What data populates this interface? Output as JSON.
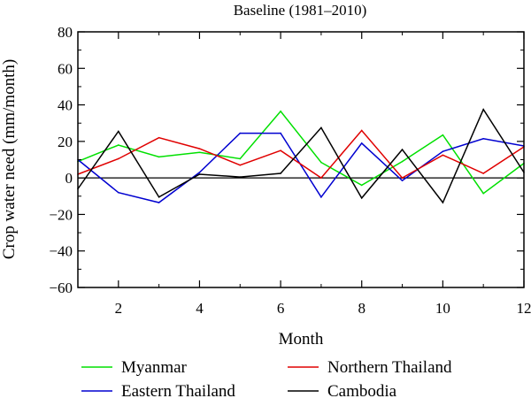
{
  "chart_data": {
    "type": "line",
    "title": "Baseline (1981–2010)",
    "xlabel": "Month",
    "ylabel": "Crop water need (mm/month)",
    "xlim": [
      1,
      12
    ],
    "ylim": [
      -60,
      80
    ],
    "x_ticks": [
      2,
      4,
      6,
      8,
      10,
      12
    ],
    "y_ticks": [
      -60,
      -40,
      -20,
      0,
      20,
      40,
      60,
      80
    ],
    "zero_line": true,
    "grid": false,
    "legend_position": "bottom",
    "x": [
      1,
      2,
      3,
      4,
      5,
      6,
      7,
      8,
      9,
      10,
      11,
      12
    ],
    "series": [
      {
        "name": "Myanmar",
        "color": "#00e000",
        "values": [
          9,
          18,
          11.5,
          14,
          10.5,
          36.5,
          8.5,
          -4,
          9,
          23.5,
          -8.5,
          8
        ]
      },
      {
        "name": "Eastern Thailand",
        "color": "#0000d0",
        "values": [
          10,
          -8,
          -13.5,
          3,
          24.5,
          24.5,
          -10.5,
          19,
          -1.5,
          14.5,
          21.5,
          17.5
        ]
      },
      {
        "name": "Northern Thailand",
        "color": "#e00000",
        "values": [
          2,
          10.5,
          22,
          16,
          7,
          15,
          0,
          26,
          0,
          12.5,
          2.5,
          17
        ]
      },
      {
        "name": "Cambodia",
        "color": "#000000",
        "values": [
          -6,
          25.5,
          -10.5,
          2,
          0.5,
          2.5,
          27.5,
          -11,
          15.5,
          -13.5,
          37.5,
          3
        ]
      }
    ]
  }
}
